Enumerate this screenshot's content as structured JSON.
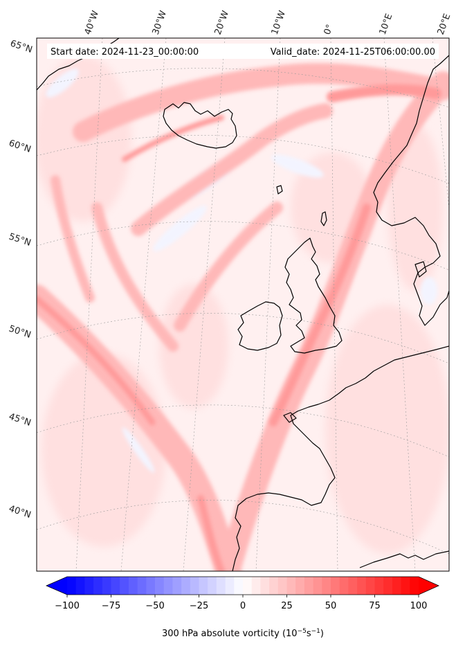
{
  "header": {
    "start_date": "Start date: 2024-11-23_00:00:00",
    "valid_date": "Valid_date: 2024-11-25T06:00:00.00"
  },
  "map": {
    "lon_labels": [
      "40°W",
      "30°W",
      "20°W",
      "10°W",
      "0°",
      "10°E",
      "20°E"
    ],
    "lat_labels": [
      "65°N",
      "60°N",
      "55°N",
      "50°N",
      "45°N",
      "40°N"
    ],
    "field_colors": {
      "strong": "#ff8a8a",
      "medium": "#ffb3b3",
      "weak": "#ffd9d9",
      "faint": "#fff0f0",
      "negative": "#eef2ff"
    }
  },
  "colorbar": {
    "min": -100,
    "max": 100,
    "ticks": [
      "−100",
      "−75",
      "−50",
      "−25",
      "0",
      "25",
      "50",
      "75",
      "100"
    ],
    "label_main": "300 hPa absolute vorticity (10",
    "label_exp1": "−5",
    "label_mid": "s",
    "label_exp2": "−1",
    "label_end": ")",
    "color_low": "#0000ff",
    "color_mid": "#ffffff",
    "color_high": "#ff0000"
  }
}
